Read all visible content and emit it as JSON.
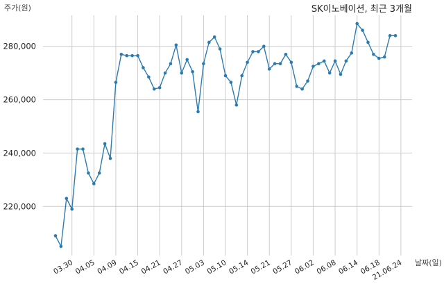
{
  "chart_data": {
    "type": "line",
    "title": "SK이노베이션, 최근 3개월",
    "ylabel": "주가(원)",
    "xlabel": "날짜(일)",
    "ylim": [
      203000,
      292000
    ],
    "y_ticks": [
      220000,
      240000,
      260000,
      280000
    ],
    "y_tick_labels": [
      "220,000",
      "240,000",
      "260,000",
      "280,000"
    ],
    "x_tick_indices": [
      3,
      7,
      11,
      15,
      19,
      23,
      27,
      31,
      35,
      39,
      43,
      47,
      51,
      55,
      59,
      63
    ],
    "x_tick_labels": [
      "03.30",
      "04.05",
      "04.09",
      "04.15",
      "04.21",
      "04.27",
      "05.03",
      "05.10",
      "05.14",
      "05.21",
      "05.27",
      "06.02",
      "06.08",
      "06.14",
      "06.18",
      "21.06.24"
    ],
    "grid": true,
    "line_color": "#2b7bb0",
    "grid_color": "#cccccc",
    "series": [
      {
        "values": [
          209000,
          205000,
          223000,
          219000,
          241500,
          241500,
          232500,
          228500,
          232500,
          243500,
          238000,
          266500,
          277000,
          276500,
          276500,
          276500,
          272000,
          268500,
          264000,
          264500,
          270000,
          273500,
          280500,
          270000,
          275000,
          270500,
          255500,
          273500,
          281500,
          283500,
          279000,
          269000,
          266500,
          258000,
          269000,
          274000,
          278000,
          278000,
          280000,
          271500,
          273500,
          273500,
          277000,
          274000,
          265000,
          264000,
          267000,
          272500,
          273500,
          274500,
          270000,
          274500,
          269500,
          274500,
          277500,
          288500,
          286000,
          281500,
          277000,
          275500,
          276000,
          284000,
          284000
        ]
      }
    ]
  }
}
